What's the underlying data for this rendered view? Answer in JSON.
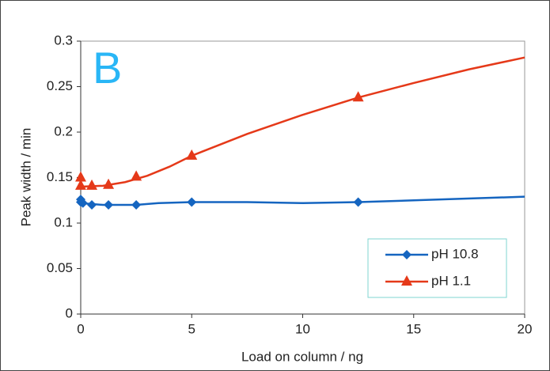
{
  "chart_data": {
    "type": "line",
    "annotation": "B",
    "xlabel": "Load on column / ng",
    "ylabel": "Peak width / min",
    "xlim": [
      0,
      20
    ],
    "xticks": [
      0,
      5,
      10,
      15,
      20
    ],
    "ylim": [
      0,
      0.3
    ],
    "yticks": [
      0,
      0.05,
      0.1,
      0.15,
      0.2,
      0.25,
      0.3
    ],
    "legend": "lower-right",
    "series": [
      {
        "name": "pH 10.8",
        "color": "#1565c0",
        "marker": "diamond",
        "x": [
          0,
          0,
          0.1,
          0.5,
          1.25,
          2.5,
          5,
          12.5
        ],
        "values": [
          0.126,
          0.123,
          0.122,
          0.12,
          0.12,
          0.12,
          0.123,
          0.123
        ],
        "curve": {
          "x": [
            0,
            1,
            2.5,
            3.5,
            5,
            7.5,
            10,
            12.5,
            15,
            20
          ],
          "values": [
            0.122,
            0.12,
            0.12,
            0.122,
            0.123,
            0.123,
            0.122,
            0.123,
            0.125,
            0.129
          ]
        }
      },
      {
        "name": "pH 1.1",
        "color": "#e53919",
        "marker": "triangle",
        "x": [
          0,
          0,
          0.5,
          1.25,
          2.5,
          5,
          12.5
        ],
        "values": [
          0.15,
          0.141,
          0.141,
          0.142,
          0.151,
          0.174,
          0.238
        ],
        "curve": {
          "x": [
            0,
            1,
            2,
            3,
            4,
            5,
            7.5,
            10,
            12.5,
            15,
            17.5,
            20
          ],
          "values": [
            0.14,
            0.141,
            0.145,
            0.152,
            0.162,
            0.174,
            0.198,
            0.219,
            0.238,
            0.254,
            0.269,
            0.282
          ]
        }
      }
    ]
  }
}
